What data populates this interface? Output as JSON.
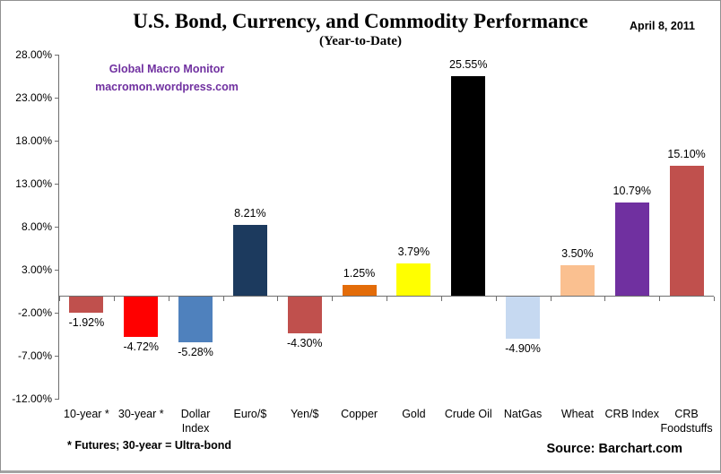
{
  "header": {
    "title": "U.S. Bond, Currency, and Commodity Performance",
    "date_label": "April 8, 2011",
    "subtitle": "(Year-to-Date)"
  },
  "watermark": {
    "line1": "Global Macro Monitor",
    "line2": "macromon.wordpress.com",
    "color": "#7030A0"
  },
  "chart_data": {
    "type": "bar",
    "title": "U.S. Bond, Currency, and Commodity Performance",
    "subtitle": "(Year-to-Date)",
    "categories": [
      "10-year *",
      "30-year *",
      "Dollar Index",
      "Euro/$",
      "Yen/$",
      "Copper",
      "Gold",
      "Crude Oil",
      "NatGas",
      "Wheat",
      "CRB Index",
      "CRB Foodstuffs"
    ],
    "values": [
      -1.92,
      -4.72,
      -5.28,
      8.21,
      -4.3,
      1.25,
      3.79,
      25.55,
      -4.9,
      3.5,
      10.79,
      15.1
    ],
    "value_labels": [
      "-1.92%",
      "-4.72%",
      "-5.28%",
      "8.21%",
      "-4.30%",
      "1.25%",
      "3.79%",
      "25.55%",
      "-4.90%",
      "3.50%",
      "10.79%",
      "15.10%"
    ],
    "bar_colors": [
      "#C0504D",
      "#FF0000",
      "#4F81BD",
      "#1C3A5E",
      "#C0504D",
      "#E36C09",
      "#FFFF00",
      "#000000",
      "#C6D9F1",
      "#FAC090",
      "#7030A0",
      "#C0504D"
    ],
    "y_ticks": [
      {
        "v": 28,
        "label": "28.00%"
      },
      {
        "v": 23,
        "label": "23.00%"
      },
      {
        "v": 18,
        "label": "18.00%"
      },
      {
        "v": 13,
        "label": "13.00%"
      },
      {
        "v": 8,
        "label": "8.00%"
      },
      {
        "v": 3,
        "label": "3.00%"
      },
      {
        "v": -2,
        "label": "-2.00%"
      },
      {
        "v": -7,
        "label": "-7.00%"
      },
      {
        "v": -12,
        "label": "-12.00%"
      }
    ],
    "ylim": [
      -12,
      28
    ],
    "xlabel": "",
    "ylabel": "",
    "grid": false,
    "legend": false
  },
  "footer": {
    "footnote": "* Futures; 30-year = Ultra-bond",
    "source": "Source: Barchart.com"
  }
}
